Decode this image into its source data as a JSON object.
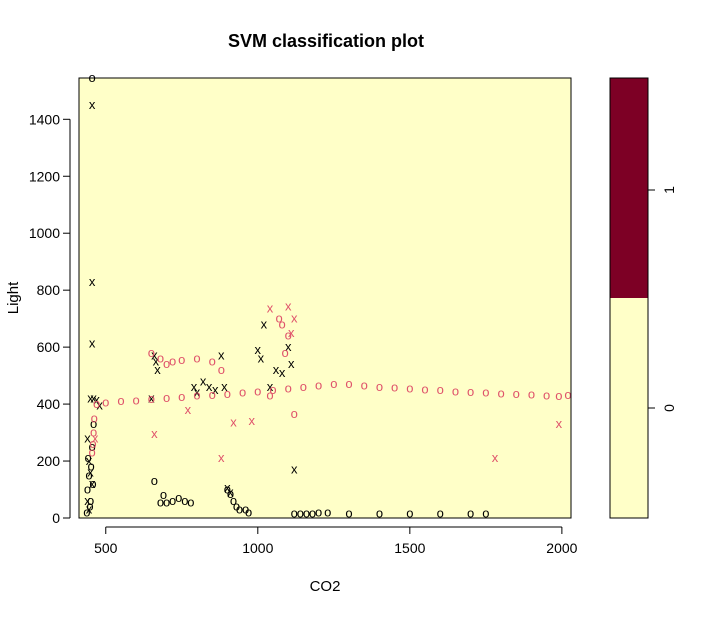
{
  "chart_data": {
    "type": "scatter",
    "title": "SVM classification plot",
    "xlabel": "CO2",
    "ylabel": "Light",
    "xlim": [
      412,
      2030
    ],
    "ylim": [
      0,
      1545
    ],
    "x_ticks": [
      500,
      1000,
      1500,
      2000
    ],
    "y_ticks": [
      0,
      200,
      400,
      600,
      800,
      1000,
      1200,
      1400
    ],
    "grid": false,
    "background_class_color": "#FFFFC8",
    "class_colors": {
      "0": "#FFFFC8",
      "1": "#7D0025"
    },
    "colorbar": {
      "labels": [
        "0",
        "1"
      ],
      "split": 0.5,
      "position": "right"
    },
    "series": [
      {
        "color": "#000000",
        "marker": "o",
        "points": [
          [
            455,
            1545
          ],
          [
            660,
            130
          ],
          [
            680,
            55
          ],
          [
            690,
            80
          ],
          [
            700,
            55
          ],
          [
            720,
            60
          ],
          [
            740,
            70
          ],
          [
            760,
            60
          ],
          [
            780,
            55
          ],
          [
            900,
            100
          ],
          [
            910,
            85
          ],
          [
            920,
            60
          ],
          [
            930,
            40
          ],
          [
            940,
            30
          ],
          [
            960,
            30
          ],
          [
            970,
            20
          ],
          [
            1120,
            15
          ],
          [
            1140,
            15
          ],
          [
            1160,
            15
          ],
          [
            1180,
            15
          ],
          [
            1200,
            20
          ],
          [
            1230,
            20
          ],
          [
            1300,
            15
          ],
          [
            1400,
            15
          ],
          [
            1500,
            15
          ],
          [
            1600,
            15
          ],
          [
            1700,
            15
          ],
          [
            1750,
            15
          ],
          [
            440,
            100
          ],
          [
            445,
            150
          ],
          [
            450,
            60
          ],
          [
            455,
            250
          ],
          [
            460,
            330
          ],
          [
            438,
            20
          ],
          [
            442,
            210
          ],
          [
            448,
            40
          ],
          [
            452,
            180
          ],
          [
            458,
            120
          ]
        ]
      },
      {
        "color": "#000000",
        "marker": "x",
        "points": [
          [
            455,
            1450
          ],
          [
            455,
            828
          ],
          [
            455,
            612
          ],
          [
            450,
            420
          ],
          [
            460,
            420
          ],
          [
            470,
            415
          ],
          [
            480,
            395
          ],
          [
            650,
            420
          ],
          [
            660,
            570
          ],
          [
            665,
            550
          ],
          [
            670,
            520
          ],
          [
            790,
            460
          ],
          [
            800,
            440
          ],
          [
            820,
            480
          ],
          [
            840,
            460
          ],
          [
            860,
            450
          ],
          [
            880,
            570
          ],
          [
            890,
            460
          ],
          [
            900,
            105
          ],
          [
            910,
            90
          ],
          [
            1000,
            590
          ],
          [
            1010,
            560
          ],
          [
            1020,
            680
          ],
          [
            1040,
            460
          ],
          [
            1060,
            520
          ],
          [
            1080,
            510
          ],
          [
            1100,
            600
          ],
          [
            1110,
            540
          ],
          [
            1120,
            170
          ],
          [
            440,
            280
          ],
          [
            445,
            200
          ],
          [
            450,
            160
          ],
          [
            455,
            120
          ],
          [
            440,
            60
          ],
          [
            445,
            30
          ]
        ]
      },
      {
        "color": "#DF536B",
        "marker": "o",
        "points": [
          [
            470,
            400
          ],
          [
            500,
            405
          ],
          [
            550,
            410
          ],
          [
            600,
            412
          ],
          [
            650,
            418
          ],
          [
            700,
            422
          ],
          [
            750,
            425
          ],
          [
            800,
            430
          ],
          [
            850,
            432
          ],
          [
            900,
            435
          ],
          [
            950,
            440
          ],
          [
            1000,
            445
          ],
          [
            1050,
            450
          ],
          [
            1100,
            455
          ],
          [
            1150,
            460
          ],
          [
            1200,
            465
          ],
          [
            1250,
            470
          ],
          [
            1300,
            470
          ],
          [
            1350,
            465
          ],
          [
            1400,
            460
          ],
          [
            1450,
            458
          ],
          [
            1500,
            455
          ],
          [
            1550,
            452
          ],
          [
            1600,
            450
          ],
          [
            1650,
            445
          ],
          [
            1700,
            442
          ],
          [
            1750,
            440
          ],
          [
            1800,
            437
          ],
          [
            1850,
            435
          ],
          [
            1900,
            433
          ],
          [
            1950,
            430
          ],
          [
            1990,
            428
          ],
          [
            2020,
            432
          ],
          [
            650,
            580
          ],
          [
            680,
            560
          ],
          [
            700,
            540
          ],
          [
            720,
            550
          ],
          [
            750,
            555
          ],
          [
            800,
            560
          ],
          [
            850,
            550
          ],
          [
            880,
            520
          ],
          [
            1040,
            430
          ],
          [
            1070,
            700
          ],
          [
            1080,
            680
          ],
          [
            1090,
            580
          ],
          [
            1100,
            640
          ],
          [
            1120,
            365
          ],
          [
            460,
            300
          ],
          [
            462,
            350
          ],
          [
            458,
            260
          ],
          [
            455,
            230
          ]
        ]
      },
      {
        "color": "#DF536B",
        "marker": "x",
        "points": [
          [
            465,
            280
          ],
          [
            660,
            295
          ],
          [
            770,
            380
          ],
          [
            880,
            210
          ],
          [
            920,
            335
          ],
          [
            980,
            340
          ],
          [
            1040,
            735
          ],
          [
            1100,
            742
          ],
          [
            1120,
            700
          ],
          [
            1110,
            650
          ],
          [
            1780,
            210
          ],
          [
            1990,
            330
          ]
        ]
      }
    ]
  }
}
